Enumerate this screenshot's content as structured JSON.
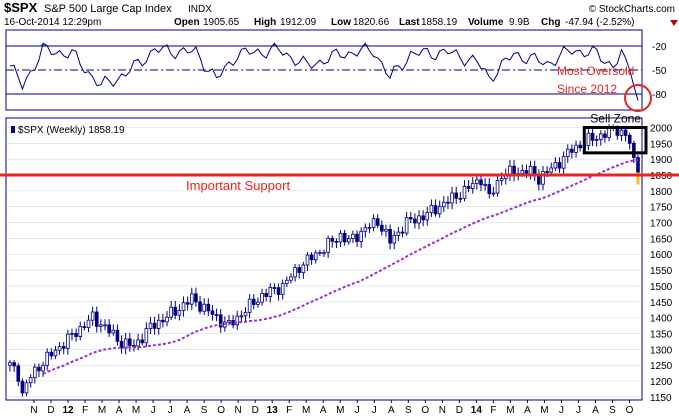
{
  "header": {
    "symbol": "$SPX",
    "name": "S&P 500 Large Cap Index",
    "exchange": "INDX",
    "source": "© StockCharts.com",
    "date": "16-Oct-2014 12:29pm",
    "open_label": "Open",
    "open_value": "1905.65",
    "high_label": "High",
    "high_value": "1912.09",
    "low_label": "Low",
    "low_value": "1820.66",
    "last_label": "Last",
    "last_value": "1858.19",
    "volume_label": "Volume",
    "volume_value": "9.9B",
    "chg_label": "Chg",
    "chg_value": "-47.94 (-2.52%)"
  },
  "chart_data": {
    "type": "candlestick",
    "price_legend": "$SPX (Weekly) 1858.19",
    "x_tick_labels": [
      "N",
      "D",
      "12",
      "F",
      "M",
      "A",
      "M",
      "J",
      "J",
      "A",
      "S",
      "O",
      "N",
      "D",
      "13",
      "F",
      "M",
      "A",
      "M",
      "J",
      "J",
      "A",
      "S",
      "O",
      "N",
      "D",
      "14",
      "F",
      "M",
      "A",
      "M",
      "J",
      "J",
      "A",
      "S",
      "O"
    ],
    "y_ticks": [
      1150,
      1200,
      1250,
      1300,
      1350,
      1400,
      1450,
      1500,
      1550,
      1600,
      1650,
      1700,
      1750,
      1800,
      1850,
      1900,
      1950,
      2000
    ],
    "ylim": [
      1140,
      2030
    ],
    "weeks": 153,
    "price_anchors": [
      [
        0,
        1250
      ],
      [
        2,
        1220
      ],
      [
        3,
        1160
      ],
      [
        5,
        1215
      ],
      [
        8,
        1260
      ],
      [
        13,
        1320
      ],
      [
        20,
        1400
      ],
      [
        23,
        1370
      ],
      [
        27,
        1320
      ],
      [
        30,
        1310
      ],
      [
        34,
        1370
      ],
      [
        40,
        1420
      ],
      [
        44,
        1460
      ],
      [
        47,
        1430
      ],
      [
        51,
        1390
      ],
      [
        53,
        1375
      ],
      [
        57,
        1425
      ],
      [
        61,
        1470
      ],
      [
        66,
        1500
      ],
      [
        70,
        1560
      ],
      [
        75,
        1610
      ],
      [
        80,
        1660
      ],
      [
        82,
        1640
      ],
      [
        86,
        1680
      ],
      [
        89,
        1705
      ],
      [
        92,
        1640
      ],
      [
        96,
        1700
      ],
      [
        100,
        1720
      ],
      [
        105,
        1760
      ],
      [
        110,
        1800
      ],
      [
        114,
        1840
      ],
      [
        116,
        1780
      ],
      [
        119,
        1850
      ],
      [
        122,
        1860
      ],
      [
        126,
        1860
      ],
      [
        128,
        1840
      ],
      [
        132,
        1880
      ],
      [
        136,
        1930
      ],
      [
        140,
        1960
      ],
      [
        144,
        1980
      ],
      [
        147,
        1995
      ],
      [
        149,
        1975
      ],
      [
        150,
        1950
      ],
      [
        151,
        1905
      ],
      [
        152,
        1858
      ]
    ],
    "moving_average_color": "#9933cc",
    "candle_color": "#000080",
    "indicator": {
      "ticks": [
        -20,
        -50,
        -80
      ],
      "ylim": [
        -100,
        0
      ],
      "lines": [
        -20,
        -50,
        -80
      ],
      "anchors": [
        [
          0,
          -45
        ],
        [
          3,
          -70
        ],
        [
          8,
          -25
        ],
        [
          15,
          -30
        ],
        [
          22,
          -70
        ],
        [
          28,
          -55
        ],
        [
          35,
          -25
        ],
        [
          45,
          -28
        ],
        [
          50,
          -62
        ],
        [
          55,
          -30
        ],
        [
          65,
          -25
        ],
        [
          72,
          -45
        ],
        [
          80,
          -30
        ],
        [
          88,
          -25
        ],
        [
          92,
          -60
        ],
        [
          97,
          -30
        ],
        [
          106,
          -28
        ],
        [
          113,
          -40
        ],
        [
          116,
          -60
        ],
        [
          122,
          -30
        ],
        [
          130,
          -42
        ],
        [
          136,
          -25
        ],
        [
          142,
          -30
        ],
        [
          146,
          -45
        ],
        [
          148,
          -30
        ],
        [
          149,
          -35
        ],
        [
          150,
          -50
        ],
        [
          151,
          -70
        ],
        [
          152,
          -88
        ]
      ]
    }
  },
  "annotations": {
    "most_oversold": "Most Oversold",
    "since": "Since 2012",
    "sell_zone": "Sell Zone",
    "important_support": "Important Support",
    "support_level": 1850,
    "sell_zone_low": 1920,
    "sell_zone_high": 2000,
    "red": "#e8251f"
  }
}
